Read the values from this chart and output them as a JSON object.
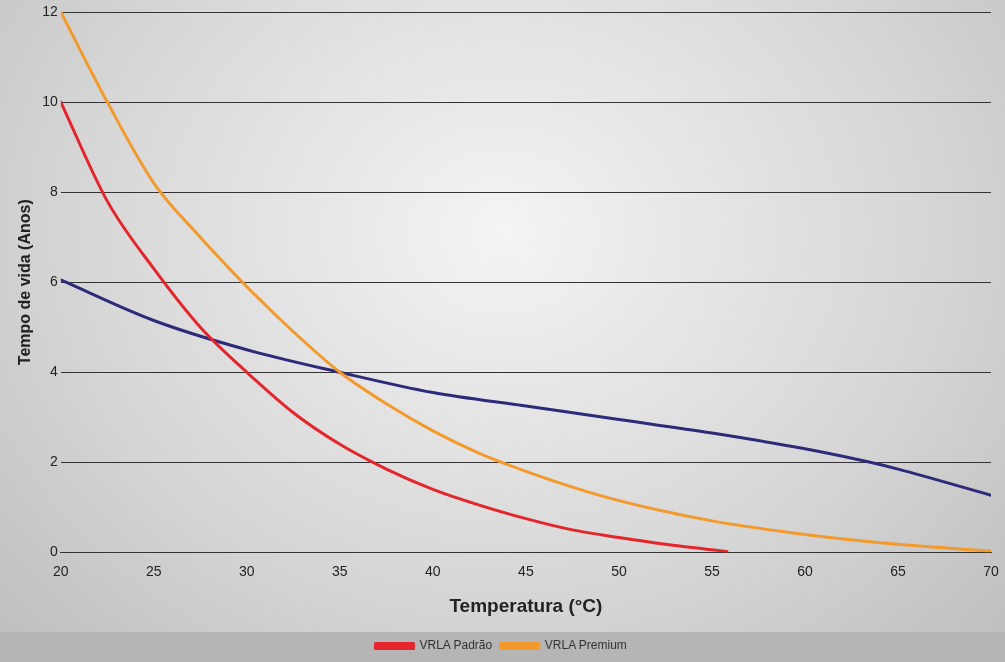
{
  "chart_data": {
    "type": "line",
    "xlabel": "Temperatura (°C)",
    "ylabel": "Tempo de vida (Anos)",
    "xlim": [
      20,
      70
    ],
    "xticks": [
      20,
      25,
      30,
      35,
      40,
      45,
      50,
      55,
      60,
      65,
      70
    ],
    "ylim": [
      0,
      12
    ],
    "yticks": [
      0,
      2,
      4,
      6,
      8,
      10,
      12
    ],
    "grid": "y",
    "legend": "bottom",
    "marker": "none",
    "line_style": "solid",
    "series": [
      {
        "name": "VRLA Padrão",
        "color": "#e4262c",
        "x": [
          20,
          22.5,
          25,
          27.5,
          30,
          32.5,
          35,
          37.5,
          40,
          42.5,
          45,
          47.5,
          50,
          52.5,
          55,
          55.8
        ],
        "values": [
          10,
          7.8,
          6.3,
          5.0,
          4.0,
          3.1,
          2.4,
          1.85,
          1.4,
          1.05,
          0.75,
          0.5,
          0.33,
          0.18,
          0.06,
          0.02
        ]
      },
      {
        "name": "VRLA Premium",
        "color": "#f39a2c",
        "x": [
          20,
          22.5,
          25,
          27.5,
          30,
          32.5,
          35,
          37.5,
          40,
          42.5,
          45,
          47.5,
          50,
          55,
          60,
          65,
          70
        ],
        "values": [
          12,
          10,
          8.2,
          7.0,
          5.9,
          4.9,
          4.0,
          3.3,
          2.7,
          2.2,
          1.8,
          1.45,
          1.15,
          0.7,
          0.4,
          0.18,
          0.03
        ]
      },
      {
        "color": "#2e2a7a",
        "x": [
          20,
          25,
          30,
          35,
          40,
          45,
          50,
          55,
          60,
          63.5,
          65,
          70
        ],
        "values": [
          6.05,
          5.15,
          4.5,
          4.0,
          3.55,
          3.25,
          2.95,
          2.65,
          2.3,
          2.0,
          1.85,
          1.27
        ]
      }
    ]
  }
}
